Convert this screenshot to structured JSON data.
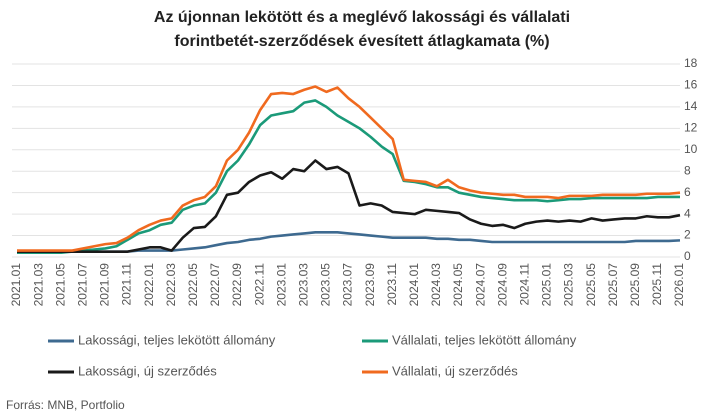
{
  "chart_data": {
    "type": "line",
    "title": [
      "Az újonnan lekötött és a meglévő lakossági és vállalati",
      "forintbetét-szerződések évesített átlagkamata (%)"
    ],
    "source": "Forrás: MNB, Portfolio",
    "categories": [
      "2021.01",
      null,
      "2021.03",
      null,
      "2021.05",
      null,
      "2021.07",
      null,
      "2021.09",
      null,
      "2021.11",
      null,
      "2022.01",
      null,
      "2022.03",
      null,
      "2022.05",
      null,
      "2022.07",
      null,
      "2022.09",
      null,
      "2022.11",
      null,
      "2023.01",
      null,
      "2023.03",
      null,
      "2023.05",
      null,
      "2023.07",
      null,
      "2023.09",
      null,
      "2023.11",
      null,
      "2024.01",
      null,
      "2024.03",
      null,
      "2024.05",
      null,
      "2024.07",
      null,
      "2024.09",
      null,
      "2024.11",
      null,
      "2025.01",
      null,
      "2025.03",
      null,
      "2025.05",
      null,
      "2025.07",
      null,
      "2025.09",
      null,
      "2025.11",
      null,
      "2026.01"
    ],
    "ylim": [
      0,
      18
    ],
    "yticks": [
      0,
      2,
      4,
      6,
      8,
      10,
      12,
      14,
      16,
      18
    ],
    "grid": true,
    "y_axis_side": "right",
    "series": [
      {
        "name": "Lakossági, teljes lekötött állomány",
        "color": "#3e6a90",
        "values": [
          0.5,
          0.5,
          0.5,
          0.5,
          0.5,
          0.5,
          0.5,
          0.5,
          0.5,
          0.5,
          0.5,
          0.6,
          0.6,
          0.6,
          0.6,
          0.7,
          0.8,
          0.9,
          1.1,
          1.3,
          1.4,
          1.6,
          1.7,
          1.9,
          2.0,
          2.1,
          2.2,
          2.3,
          2.3,
          2.3,
          2.2,
          2.1,
          2.0,
          1.9,
          1.8,
          1.8,
          1.8,
          1.8,
          1.7,
          1.7,
          1.6,
          1.6,
          1.5,
          1.4,
          1.4,
          1.4,
          1.4,
          1.4,
          1.4,
          1.4,
          1.4,
          1.4,
          1.4,
          1.4,
          1.4,
          1.4,
          1.5,
          1.5,
          1.5,
          1.5,
          1.55
        ]
      },
      {
        "name": "Vállalati, teljes lekötött állomány",
        "color": "#1b9a79",
        "values": [
          0.4,
          0.4,
          0.4,
          0.4,
          0.4,
          0.5,
          0.6,
          0.7,
          0.8,
          1.0,
          1.6,
          2.2,
          2.5,
          3.0,
          3.2,
          4.4,
          4.8,
          5.0,
          6.0,
          8.0,
          9.0,
          10.5,
          12.3,
          13.2,
          13.4,
          13.6,
          14.4,
          14.6,
          14.0,
          13.2,
          12.6,
          12.0,
          11.2,
          10.3,
          9.6,
          7.1,
          7.0,
          6.8,
          6.5,
          6.5,
          6.0,
          5.8,
          5.6,
          5.5,
          5.4,
          5.3,
          5.3,
          5.3,
          5.2,
          5.3,
          5.4,
          5.4,
          5.5,
          5.5,
          5.5,
          5.5,
          5.5,
          5.5,
          5.6,
          5.6,
          5.6
        ]
      },
      {
        "name": "Lakossági, új szerződés",
        "color": "#1a1a1a",
        "values": [
          0.5,
          0.5,
          0.5,
          0.5,
          0.5,
          0.5,
          0.5,
          0.5,
          0.5,
          0.5,
          0.5,
          0.7,
          0.9,
          0.9,
          0.6,
          1.8,
          2.7,
          2.8,
          3.8,
          5.8,
          6.0,
          7.0,
          7.6,
          7.9,
          7.3,
          8.2,
          8.0,
          9.0,
          8.2,
          8.4,
          7.8,
          4.8,
          5.0,
          4.8,
          4.2,
          4.1,
          4.0,
          4.4,
          4.3,
          4.2,
          4.1,
          3.5,
          3.1,
          2.9,
          3.0,
          2.7,
          3.1,
          3.3,
          3.4,
          3.3,
          3.4,
          3.3,
          3.6,
          3.4,
          3.5,
          3.6,
          3.6,
          3.8,
          3.7,
          3.7,
          3.9
        ]
      },
      {
        "name": "Vállalati, új szerződés",
        "color": "#f06a1f",
        "values": [
          0.6,
          0.6,
          0.6,
          0.6,
          0.6,
          0.6,
          0.8,
          1.0,
          1.2,
          1.3,
          1.8,
          2.5,
          3.0,
          3.4,
          3.6,
          4.8,
          5.3,
          5.6,
          6.6,
          9.0,
          10.0,
          11.6,
          13.7,
          15.2,
          15.3,
          15.2,
          15.6,
          15.9,
          15.4,
          15.8,
          14.8,
          14.0,
          13.0,
          12.0,
          11.0,
          7.2,
          7.1,
          7.0,
          6.6,
          7.2,
          6.5,
          6.2,
          6.0,
          5.9,
          5.8,
          5.8,
          5.6,
          5.6,
          5.6,
          5.5,
          5.7,
          5.7,
          5.7,
          5.8,
          5.8,
          5.8,
          5.8,
          5.9,
          5.9,
          5.9,
          6.0
        ]
      }
    ]
  }
}
